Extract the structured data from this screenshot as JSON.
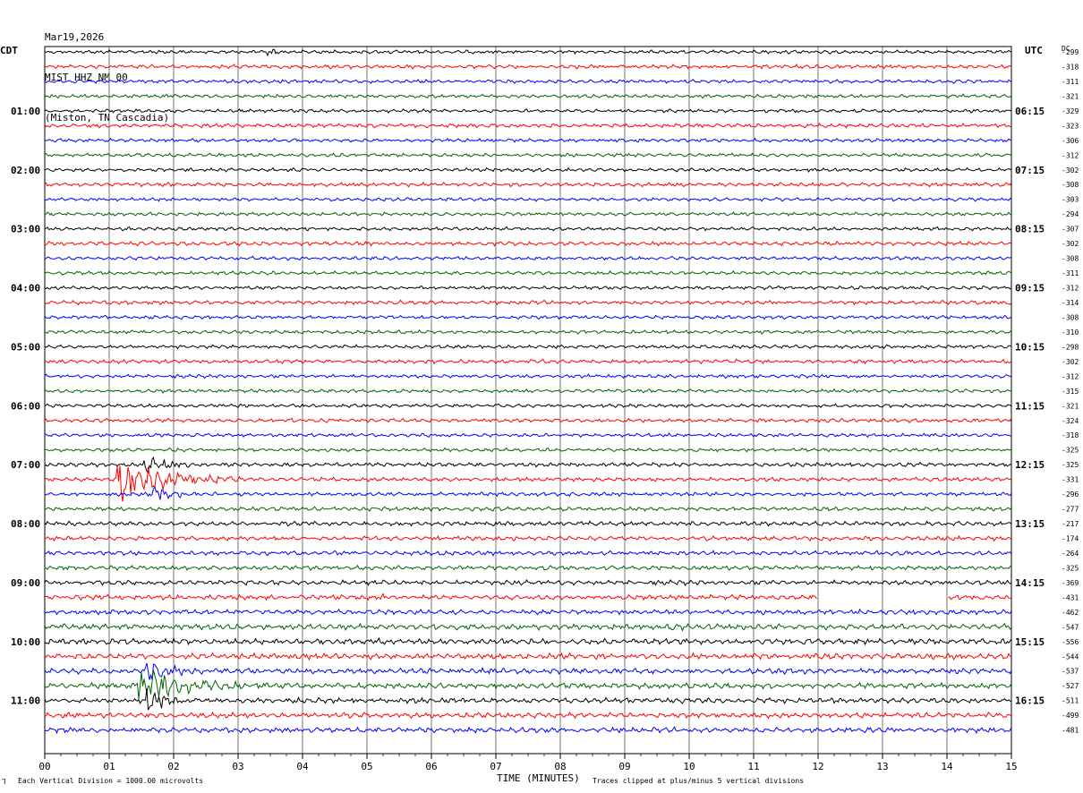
{
  "header": {
    "date": "Mar19,2026",
    "station": "MIST HHZ NM 00",
    "location": "(Miston, TN Cascadia)"
  },
  "left_axis_label": "CDT",
  "right_axis_label": "UTC",
  "dc_label": "DC",
  "footer": {
    "scale_note": "Each Vertical Division = 1000.00 microvolts",
    "xlabel": "TIME (MINUTES)",
    "clip_note": "Traces clipped at plus/minus 5 vertical divisions"
  },
  "colors": {
    "trace_cycle": [
      "#000000",
      "#ff0000",
      "#0000ff",
      "#006600"
    ],
    "grid": "#555555"
  },
  "chart_data": {
    "type": "line",
    "title": "MIST HHZ NM 00",
    "xlabel": "TIME (MINUTES)",
    "xlim": [
      0,
      15
    ],
    "x_ticks": [
      "00",
      "01",
      "02",
      "03",
      "04",
      "05",
      "06",
      "07",
      "08",
      "09",
      "10",
      "11",
      "12",
      "13",
      "14",
      "15"
    ],
    "row_minutes": 15,
    "left_hour_labels": [
      {
        "row": 4,
        "label": "01:00"
      },
      {
        "row": 8,
        "label": "02:00"
      },
      {
        "row": 12,
        "label": "03:00"
      },
      {
        "row": 16,
        "label": "04:00"
      },
      {
        "row": 20,
        "label": "05:00"
      },
      {
        "row": 24,
        "label": "06:00"
      },
      {
        "row": 28,
        "label": "07:00"
      },
      {
        "row": 32,
        "label": "08:00"
      },
      {
        "row": 36,
        "label": "09:00"
      },
      {
        "row": 40,
        "label": "10:00"
      },
      {
        "row": 44,
        "label": "11:00"
      }
    ],
    "right_hour_labels": [
      {
        "row": 4,
        "label": "06:15"
      },
      {
        "row": 8,
        "label": "07:15"
      },
      {
        "row": 12,
        "label": "08:15"
      },
      {
        "row": 16,
        "label": "09:15"
      },
      {
        "row": 20,
        "label": "10:15"
      },
      {
        "row": 24,
        "label": "11:15"
      },
      {
        "row": 28,
        "label": "12:15"
      },
      {
        "row": 32,
        "label": "13:15"
      },
      {
        "row": 36,
        "label": "14:15"
      },
      {
        "row": 40,
        "label": "15:15"
      },
      {
        "row": 44,
        "label": "16:15"
      }
    ],
    "dc_offsets": [
      "-299",
      "-318",
      "-311",
      "-321",
      "-329",
      "-323",
      "-306",
      "-312",
      "-302",
      "-308",
      "-303",
      "-294",
      "-307",
      "-302",
      "-308",
      "-311",
      "-312",
      "-314",
      "-308",
      "-310",
      "-298",
      "-302",
      "-312",
      "-315",
      "-321",
      "-324",
      "-318",
      "-325",
      "-325",
      "-331",
      "-296",
      "-277",
      "-217",
      "-174",
      "-264",
      "-325",
      "-369",
      "-431",
      "-462",
      "-547",
      "-556",
      "-544",
      "-537",
      "-527",
      "-511",
      "-499",
      "-481"
    ],
    "row_noise_level": [
      0.8,
      0.9,
      0.8,
      0.8,
      0.8,
      0.9,
      0.8,
      0.8,
      0.8,
      0.9,
      0.8,
      0.8,
      0.8,
      0.9,
      0.8,
      0.8,
      0.8,
      0.9,
      0.8,
      0.8,
      0.8,
      0.9,
      0.8,
      0.8,
      0.8,
      0.9,
      0.8,
      0.8,
      0.9,
      0.9,
      0.9,
      0.9,
      1.0,
      1.0,
      1.0,
      1.0,
      1.1,
      1.1,
      1.1,
      1.3,
      1.3,
      1.3,
      1.3,
      1.3,
      1.2,
      1.2,
      1.2
    ],
    "events": [
      {
        "row": 0,
        "start_min": 3.45,
        "end_min": 3.65,
        "amplitude": 2.0
      },
      {
        "row": 29,
        "start_min": 1.05,
        "end_min": 3.1,
        "amplitude": 9.0
      },
      {
        "row": 28,
        "start_min": 1.5,
        "end_min": 2.4,
        "amplitude": 5.0
      },
      {
        "row": 30,
        "start_min": 1.6,
        "end_min": 2.3,
        "amplitude": 4.0
      },
      {
        "row": 37,
        "start_min": 5.2,
        "end_min": 5.3,
        "amplitude": 2.0
      },
      {
        "row": 39,
        "start_min": 9.6,
        "end_min": 10.0,
        "amplitude": 2.0
      },
      {
        "row": 43,
        "start_min": 1.4,
        "end_min": 3.5,
        "amplitude": 8.0
      },
      {
        "row": 42,
        "start_min": 1.55,
        "end_min": 2.3,
        "amplitude": 5.0
      },
      {
        "row": 44,
        "start_min": 1.55,
        "end_min": 2.3,
        "amplitude": 5.0
      }
    ],
    "gaps": [
      {
        "row": 37,
        "start_min": 12.0,
        "end_min": 14.0
      }
    ]
  }
}
